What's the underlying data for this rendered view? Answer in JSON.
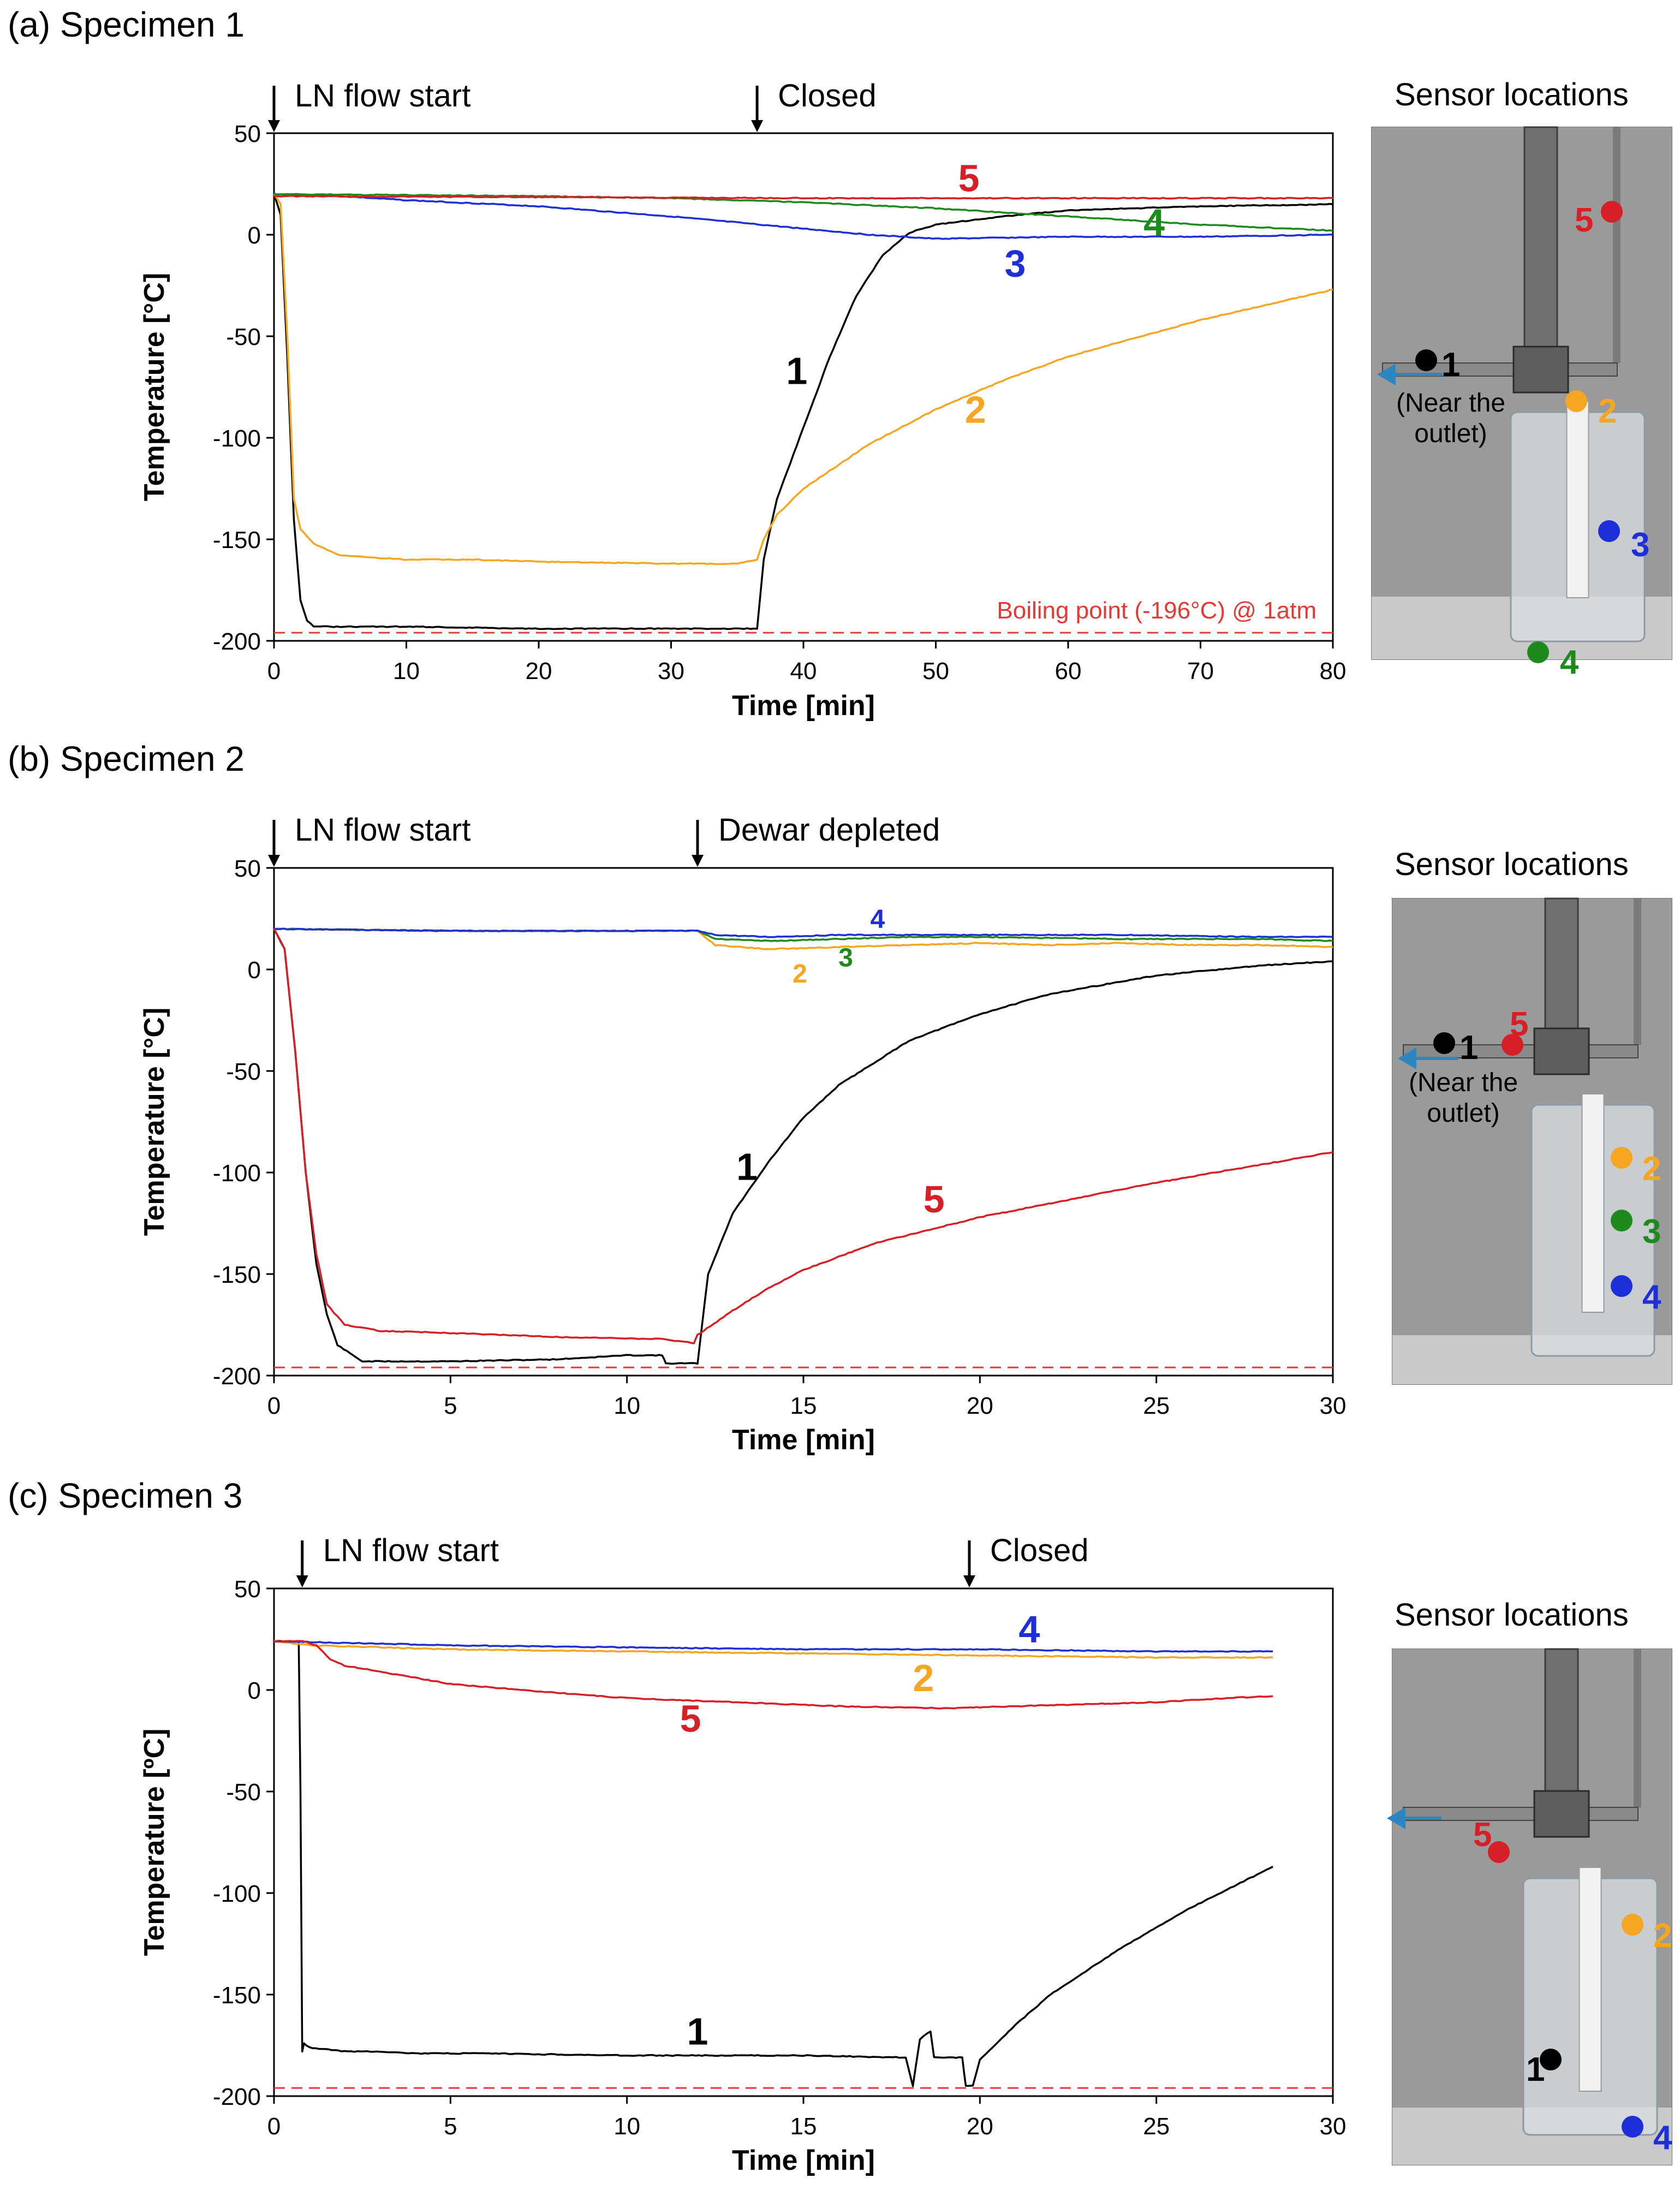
{
  "chart_data": [
    {
      "type": "line",
      "title": "(a) Specimen 1",
      "xlabel": "Time [min]",
      "ylabel": "Temperature [°C]",
      "xlim": [
        0,
        80
      ],
      "ylim": [
        -200,
        50
      ],
      "xticks": [
        0,
        10,
        20,
        30,
        40,
        50,
        60,
        70,
        80
      ],
      "yticks": [
        50,
        0,
        -50,
        -100,
        -150,
        -200
      ],
      "events": [
        {
          "x": 0,
          "label": "LN flow start"
        },
        {
          "x": 36.5,
          "label": "Closed"
        }
      ],
      "reference_line": {
        "y": -196,
        "label": "Boiling point (-196°C) @ 1atm",
        "color": "#e53935"
      },
      "series": [
        {
          "name": "1",
          "color": "#000000",
          "x": [
            0,
            0.5,
            1,
            1.5,
            2,
            2.5,
            3,
            5,
            10,
            20,
            30,
            36.5,
            37,
            38,
            40,
            42,
            44,
            46,
            48,
            50,
            55,
            60,
            70,
            80
          ],
          "y": [
            20,
            10,
            -60,
            -140,
            -180,
            -190,
            -193,
            -193,
            -193,
            -194,
            -194,
            -194,
            -160,
            -130,
            -95,
            -60,
            -30,
            -10,
            1,
            5,
            9,
            12,
            14,
            15
          ],
          "label_pos": {
            "x": 39.5,
            "y": -67
          }
        },
        {
          "name": "2",
          "color": "#f5a623",
          "x": [
            0,
            0.5,
            1,
            1.5,
            2,
            3,
            5,
            10,
            15,
            20,
            30,
            35,
            36.5,
            37,
            38,
            40,
            45,
            50,
            55,
            60,
            70,
            80
          ],
          "y": [
            20,
            15,
            -50,
            -130,
            -145,
            -152,
            -158,
            -160,
            -160,
            -161,
            -162,
            -162,
            -160,
            -150,
            -138,
            -125,
            -103,
            -86,
            -72,
            -60,
            -42,
            -27
          ],
          "label_pos": {
            "x": 53,
            "y": -86
          }
        },
        {
          "name": "3",
          "color": "#1f2fd8",
          "x": [
            0,
            5,
            10,
            20,
            30,
            40,
            45,
            50,
            60,
            70,
            80
          ],
          "y": [
            20,
            19,
            17,
            14,
            9,
            3,
            0,
            -2,
            -1,
            -1,
            0
          ],
          "label_pos": {
            "x": 56,
            "y": -14
          }
        },
        {
          "name": "4",
          "color": "#1e8a1e",
          "x": [
            0,
            10,
            20,
            30,
            40,
            50,
            60,
            70,
            80
          ],
          "y": [
            20,
            19.5,
            19,
            18,
            16,
            13,
            9,
            5,
            2
          ],
          "label_pos": {
            "x": 66.5,
            "y": 6
          }
        },
        {
          "name": "5",
          "color": "#d61f26",
          "x": [
            0,
            20,
            40,
            60,
            80
          ],
          "y": [
            19,
            18.5,
            18,
            18,
            18
          ],
          "label_pos": {
            "x": 52.5,
            "y": 28
          }
        }
      ]
    },
    {
      "type": "line",
      "title": "(b) Specimen 2",
      "xlabel": "Time [min]",
      "ylabel": "Temperature [°C]",
      "xlim": [
        0,
        30
      ],
      "ylim": [
        -200,
        50
      ],
      "xticks": [
        0,
        5,
        10,
        15,
        20,
        25,
        30
      ],
      "yticks": [
        50,
        0,
        -50,
        -100,
        -150,
        -200
      ],
      "events": [
        {
          "x": 0,
          "label": "LN flow start"
        },
        {
          "x": 12,
          "label": "Dewar depleted"
        }
      ],
      "reference_line": {
        "y": -196,
        "label": "",
        "color": "#e53935"
      },
      "series": [
        {
          "name": "1",
          "color": "#000000",
          "x": [
            0,
            0.3,
            0.6,
            0.9,
            1.2,
            1.5,
            1.8,
            2.5,
            5,
            8,
            10,
            11,
            11.1,
            12,
            12.3,
            13,
            14,
            15,
            16,
            18,
            20,
            22,
            25,
            28,
            30
          ],
          "y": [
            20,
            10,
            -40,
            -100,
            -145,
            -170,
            -185,
            -193,
            -193,
            -192,
            -190,
            -190,
            -194,
            -194,
            -150,
            -120,
            -95,
            -73,
            -57,
            -35,
            -22,
            -12,
            -3,
            2,
            4
          ],
          "label_pos": {
            "x": 13.4,
            "y": -97
          }
        },
        {
          "name": "2",
          "color": "#f5a623",
          "x": [
            0,
            5,
            10,
            12,
            12.5,
            14,
            16,
            18,
            20,
            22,
            24,
            26,
            28,
            30
          ],
          "y": [
            20,
            19,
            19,
            19,
            12,
            10,
            11,
            12,
            13,
            12,
            13,
            12,
            12,
            11
          ],
          "label_pos": {
            "x": 14.9,
            "y": -2
          }
        },
        {
          "name": "3",
          "color": "#1e8a1e",
          "x": [
            0,
            5,
            10,
            12,
            12.5,
            14,
            16,
            18,
            20,
            24,
            28,
            30
          ],
          "y": [
            20,
            19,
            19,
            19,
            15,
            14,
            15,
            16,
            16,
            15,
            15,
            14
          ],
          "label_pos": {
            "x": 16.2,
            "y": 6
          }
        },
        {
          "name": "4",
          "color": "#1f2fd8",
          "x": [
            0,
            5,
            10,
            12,
            12.5,
            14,
            16,
            18,
            20,
            24,
            28,
            30
          ],
          "y": [
            20,
            19,
            19,
            19,
            17,
            16,
            17,
            17,
            17,
            17,
            16,
            16
          ],
          "label_pos": {
            "x": 17.1,
            "y": 25
          }
        },
        {
          "name": "5",
          "color": "#d61f26",
          "x": [
            0,
            0.3,
            0.6,
            0.9,
            1.2,
            1.5,
            2,
            3,
            5,
            8,
            11,
            11.9,
            12,
            13,
            14,
            15,
            17,
            20,
            25,
            30
          ],
          "y": [
            20,
            10,
            -40,
            -100,
            -140,
            -165,
            -175,
            -178,
            -179,
            -181,
            -182,
            -184,
            -180,
            -168,
            -157,
            -148,
            -135,
            -122,
            -105,
            -90
          ],
          "label_pos": {
            "x": 18.7,
            "y": -113
          }
        }
      ]
    },
    {
      "type": "line",
      "title": "(c) Specimen 3",
      "xlabel": "Time [min]",
      "ylabel": "Temperature [ºC]",
      "xlim": [
        0,
        30
      ],
      "ylim": [
        -200,
        50
      ],
      "xticks": [
        0,
        5,
        10,
        15,
        20,
        25,
        30
      ],
      "yticks": [
        50,
        0,
        -50,
        -100,
        -150,
        -200
      ],
      "events": [
        {
          "x": 0.8,
          "label": "LN flow start"
        },
        {
          "x": 19.7,
          "label": "Closed"
        }
      ],
      "reference_line": {
        "y": -196,
        "label": "",
        "color": "#e53935"
      },
      "series": [
        {
          "name": "1",
          "color": "#000000",
          "x": [
            0,
            0.7,
            0.75,
            0.8,
            0.85,
            1,
            2,
            3,
            4,
            6,
            10,
            15,
            17.9,
            18.1,
            18.3,
            18.6,
            18.7,
            19.5,
            19.6,
            19.8,
            20,
            21,
            22,
            24,
            26,
            28.3
          ],
          "y": [
            24,
            24,
            -50,
            -178,
            -174,
            -176,
            -178,
            -178,
            -179,
            -179,
            -180,
            -180,
            -181,
            -195,
            -172,
            -168,
            -181,
            -181,
            -195,
            -195,
            -182,
            -165,
            -150,
            -127,
            -107,
            -87
          ],
          "label_pos": {
            "x": 12,
            "y": -168
          }
        },
        {
          "name": "2",
          "color": "#f5a623",
          "x": [
            0,
            1,
            5,
            10,
            15,
            20,
            25,
            28.3
          ],
          "y": [
            24,
            22,
            20,
            19,
            18,
            17,
            16,
            16
          ],
          "label_pos": {
            "x": 18.4,
            "y": 6
          }
        },
        {
          "name": "4",
          "color": "#1f2fd8",
          "x": [
            0,
            5,
            10,
            15,
            20,
            25,
            28.3
          ],
          "y": [
            24,
            22,
            21,
            20,
            20,
            19,
            19
          ],
          "label_pos": {
            "x": 21.4,
            "y": 30
          }
        },
        {
          "name": "5",
          "color": "#d61f26",
          "x": [
            0,
            0.8,
            1.2,
            1.6,
            2,
            3,
            4,
            5,
            7,
            10,
            13,
            16,
            19,
            21,
            23,
            25,
            27,
            28.3
          ],
          "y": [
            24,
            24,
            22,
            15,
            12,
            9,
            6,
            3,
            0,
            -4,
            -6,
            -8,
            -9,
            -8,
            -7,
            -6,
            -4,
            -3
          ],
          "label_pos": {
            "x": 11.8,
            "y": -14
          }
        }
      ]
    }
  ],
  "sensor_panels": [
    {
      "title": "Sensor locations",
      "markers": [
        {
          "num": "1",
          "color": "#000000"
        },
        {
          "num": "2",
          "color": "#f5a623"
        },
        {
          "num": "3",
          "color": "#1f2fd8"
        },
        {
          "num": "4",
          "color": "#1e8a1e"
        },
        {
          "num": "5",
          "color": "#d61f26"
        }
      ],
      "note": "(Near the outlet)"
    },
    {
      "title": "Sensor locations",
      "markers": [
        {
          "num": "1",
          "color": "#000000"
        },
        {
          "num": "5",
          "color": "#d61f26"
        },
        {
          "num": "2",
          "color": "#f5a623"
        },
        {
          "num": "3",
          "color": "#1e8a1e"
        },
        {
          "num": "4",
          "color": "#1f2fd8"
        }
      ],
      "note": "(Near the outlet)"
    },
    {
      "title": "Sensor locations",
      "markers": [
        {
          "num": "5",
          "color": "#d61f26"
        },
        {
          "num": "2",
          "color": "#f5a623"
        },
        {
          "num": "1",
          "color": "#000000"
        },
        {
          "num": "4",
          "color": "#1f2fd8"
        }
      ],
      "note": ""
    }
  ]
}
